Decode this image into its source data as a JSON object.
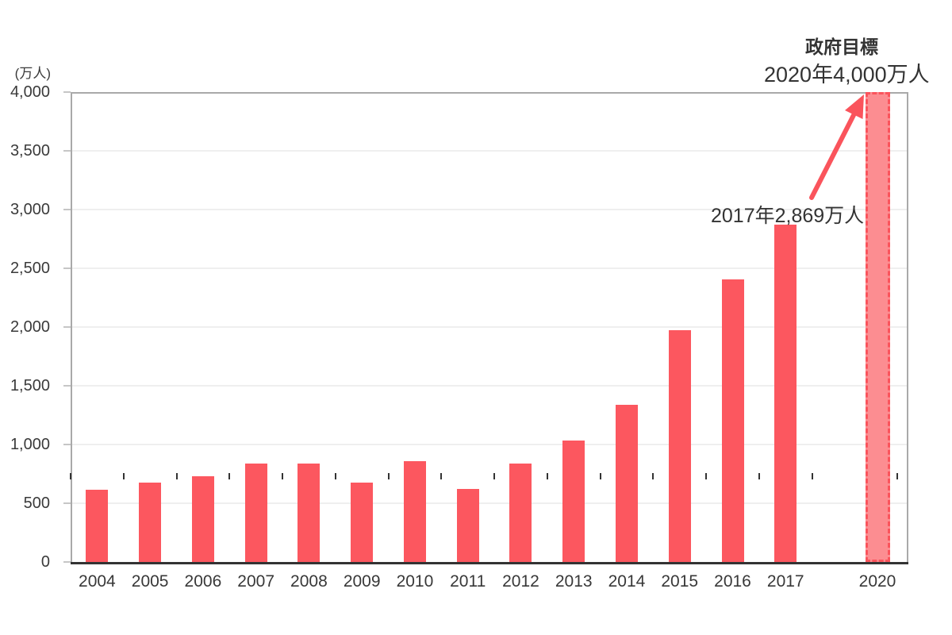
{
  "chart_data": {
    "type": "bar",
    "unit_label": "(万人)",
    "categories": [
      "2004",
      "2005",
      "2006",
      "2007",
      "2008",
      "2009",
      "2010",
      "2011",
      "2012",
      "2013",
      "2014",
      "2015",
      "2016",
      "2017",
      "2020"
    ],
    "values": [
      614,
      673,
      733,
      835,
      835,
      679,
      861,
      622,
      836,
      1036,
      1341,
      1974,
      2404,
      2869,
      4000
    ],
    "target_index": 14,
    "ylim": [
      0,
      4000
    ],
    "ytick_step": 500,
    "ytick_labels": [
      "0",
      "500",
      "1,000",
      "1,500",
      "2,000",
      "2,500",
      "3,000",
      "3,500",
      "4,000"
    ],
    "grid": true,
    "legend_position": "none",
    "annotations": {
      "goal_title": "政府目標",
      "goal_value": "2020年4,000万人",
      "latest_label": "2017年2,869万人"
    },
    "colors": {
      "bar": "#fc575f",
      "target_fill": "#fc8d91",
      "target_border": "#fa545c",
      "arrow": "#fa545c",
      "grid": "#efefef",
      "frame": "#a9a9a9",
      "axis": "#333333",
      "text": "#333333"
    }
  }
}
